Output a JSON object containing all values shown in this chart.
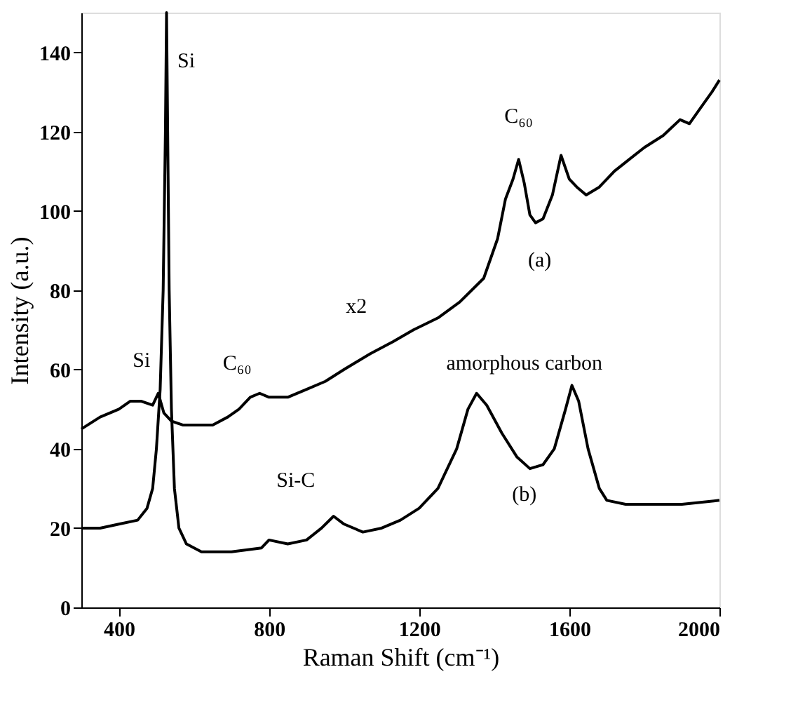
{
  "chart_data": {
    "type": "line",
    "xlabel": "Raman Shift (cm⁻¹)",
    "ylabel": "Intensity (a.u.)",
    "xlim": [
      300,
      2000
    ],
    "ylim": [
      0,
      150
    ],
    "xticks": [
      400,
      800,
      {
        "value": 1200,
        "label": "1200"
      },
      {
        "value": 1600,
        "label": "1600"
      },
      {
        "value": 2000,
        "label": "2000"
      }
    ],
    "yticks": [
      0,
      20,
      40,
      60,
      80,
      100,
      120,
      140
    ],
    "grid": false,
    "marker": "none",
    "line_style": "solid",
    "series": [
      {
        "color": "#000000",
        "x": [
          300,
          350,
          400,
          430,
          460,
          490,
          505,
          520,
          540,
          570,
          610,
          650,
          690,
          720,
          750,
          775,
          800,
          850,
          900,
          950,
          1000,
          1070,
          1130,
          1185,
          1250,
          1308,
          1372,
          1409,
          1430,
          1450,
          1465,
          1480,
          1495,
          1510,
          1530,
          1555,
          1578,
          1600,
          1620,
          1645,
          1680,
          1720,
          1760,
          1800,
          1850,
          1895,
          1920,
          1950,
          1980,
          2000
        ],
        "values": [
          45,
          48,
          50,
          52,
          52,
          51,
          54,
          49,
          47,
          46,
          46,
          46,
          48,
          50,
          53,
          54,
          53,
          53,
          55,
          57,
          60,
          64,
          67,
          70,
          73,
          77,
          83,
          93,
          103,
          108,
          113,
          107,
          99,
          97,
          98,
          104,
          114,
          108,
          106,
          104,
          106,
          110,
          113,
          116,
          119,
          123,
          122,
          126,
          130,
          133
        ]
      },
      {
        "color": "#000000",
        "x": [
          300,
          350,
          400,
          450,
          475,
          490,
          500,
          510,
          518,
          524,
          527,
          530,
          534,
          540,
          548,
          560,
          580,
          620,
          700,
          780,
          800,
          850,
          900,
          940,
          972,
          1000,
          1050,
          1100,
          1150,
          1200,
          1250,
          1300,
          1330,
          1353,
          1380,
          1420,
          1460,
          1495,
          1530,
          1560,
          1590,
          1607,
          1625,
          1650,
          1680,
          1700,
          1750,
          1800,
          1900,
          2000
        ],
        "values": [
          20,
          20,
          21,
          22,
          25,
          30,
          40,
          55,
          80,
          120,
          150,
          120,
          80,
          50,
          30,
          20,
          16,
          14,
          14,
          15,
          17,
          16,
          17,
          20,
          23,
          21,
          19,
          20,
          22,
          25,
          30,
          40,
          50,
          54,
          51,
          44,
          38,
          35,
          36,
          40,
          50,
          56,
          52,
          40,
          30,
          27,
          26,
          26,
          26,
          27
        ]
      }
    ],
    "annotations": [
      {
        "text": "Si",
        "x": 527,
        "y": 150
      },
      {
        "text": "Si",
        "x": 505,
        "y": 54
      },
      {
        "text": "C₆₀",
        "x": 775,
        "y": 54
      },
      {
        "text": "x2",
        "x": 1070,
        "y": 64
      },
      {
        "text": "C₆₀",
        "x": 1465,
        "y": 113
      },
      {
        "text": "(a)",
        "x": 1510,
        "y": 97
      },
      {
        "text": "amorphous   carbon",
        "x": 1353,
        "y": 54
      },
      {
        "text": "Si-C",
        "x": 972,
        "y": 23
      },
      {
        "text": "(b)",
        "x": 1495,
        "y": 35
      }
    ]
  }
}
